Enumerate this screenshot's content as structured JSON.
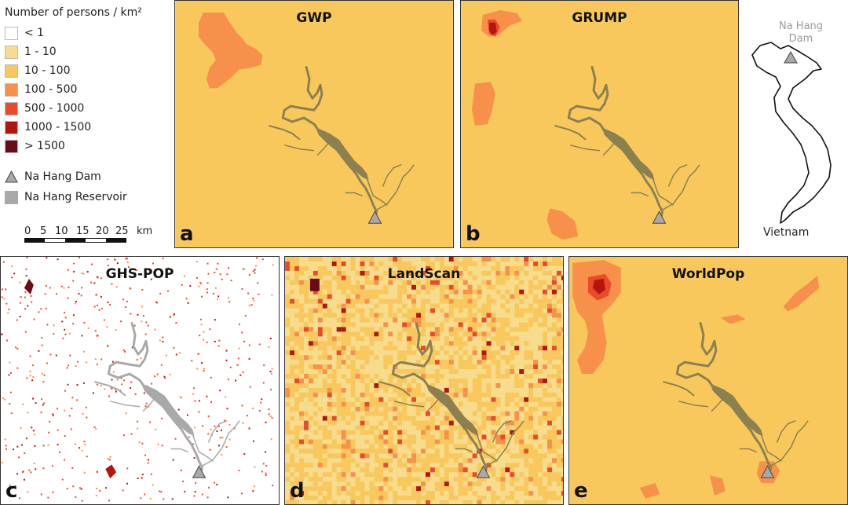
{
  "legend": {
    "title": "Number of persons / km²",
    "classes": [
      {
        "label": "< 1",
        "color": "#ffffff"
      },
      {
        "label": "1 - 10",
        "color": "#f6dc8c"
      },
      {
        "label": "10 - 100",
        "color": "#f9c85c"
      },
      {
        "label": "100 - 500",
        "color": "#f7904a"
      },
      {
        "label": "500 - 1000",
        "color": "#ea4a2a"
      },
      {
        "label": "1000 - 1500",
        "color": "#b3160e"
      },
      {
        "label": "> 1500",
        "color": "#6b0a18"
      }
    ],
    "dam_label": "Na Hang Dam",
    "reservoir_label": "Na Hang Reservoir",
    "dam_color": "#a9a9a9",
    "reservoir_color": "#a9a9a9"
  },
  "scalebar": {
    "ticks": [
      "0",
      "5",
      "10",
      "15",
      "20",
      "25"
    ],
    "unit": "km"
  },
  "panels": [
    {
      "letter": "a",
      "title": "GWP"
    },
    {
      "letter": "b",
      "title": "GRUMP"
    },
    {
      "letter": "c",
      "title": "GHS-POP"
    },
    {
      "letter": "d",
      "title": "LandScan"
    },
    {
      "letter": "e",
      "title": "WorldPop"
    }
  ],
  "inset": {
    "dam_label": "Na Hang Dam",
    "country": "Vietnam"
  },
  "colors": {
    "reservoir_on_color": "#8c8050",
    "reservoir_on_white": "#a9a9a9",
    "base": "#f9c85c"
  }
}
